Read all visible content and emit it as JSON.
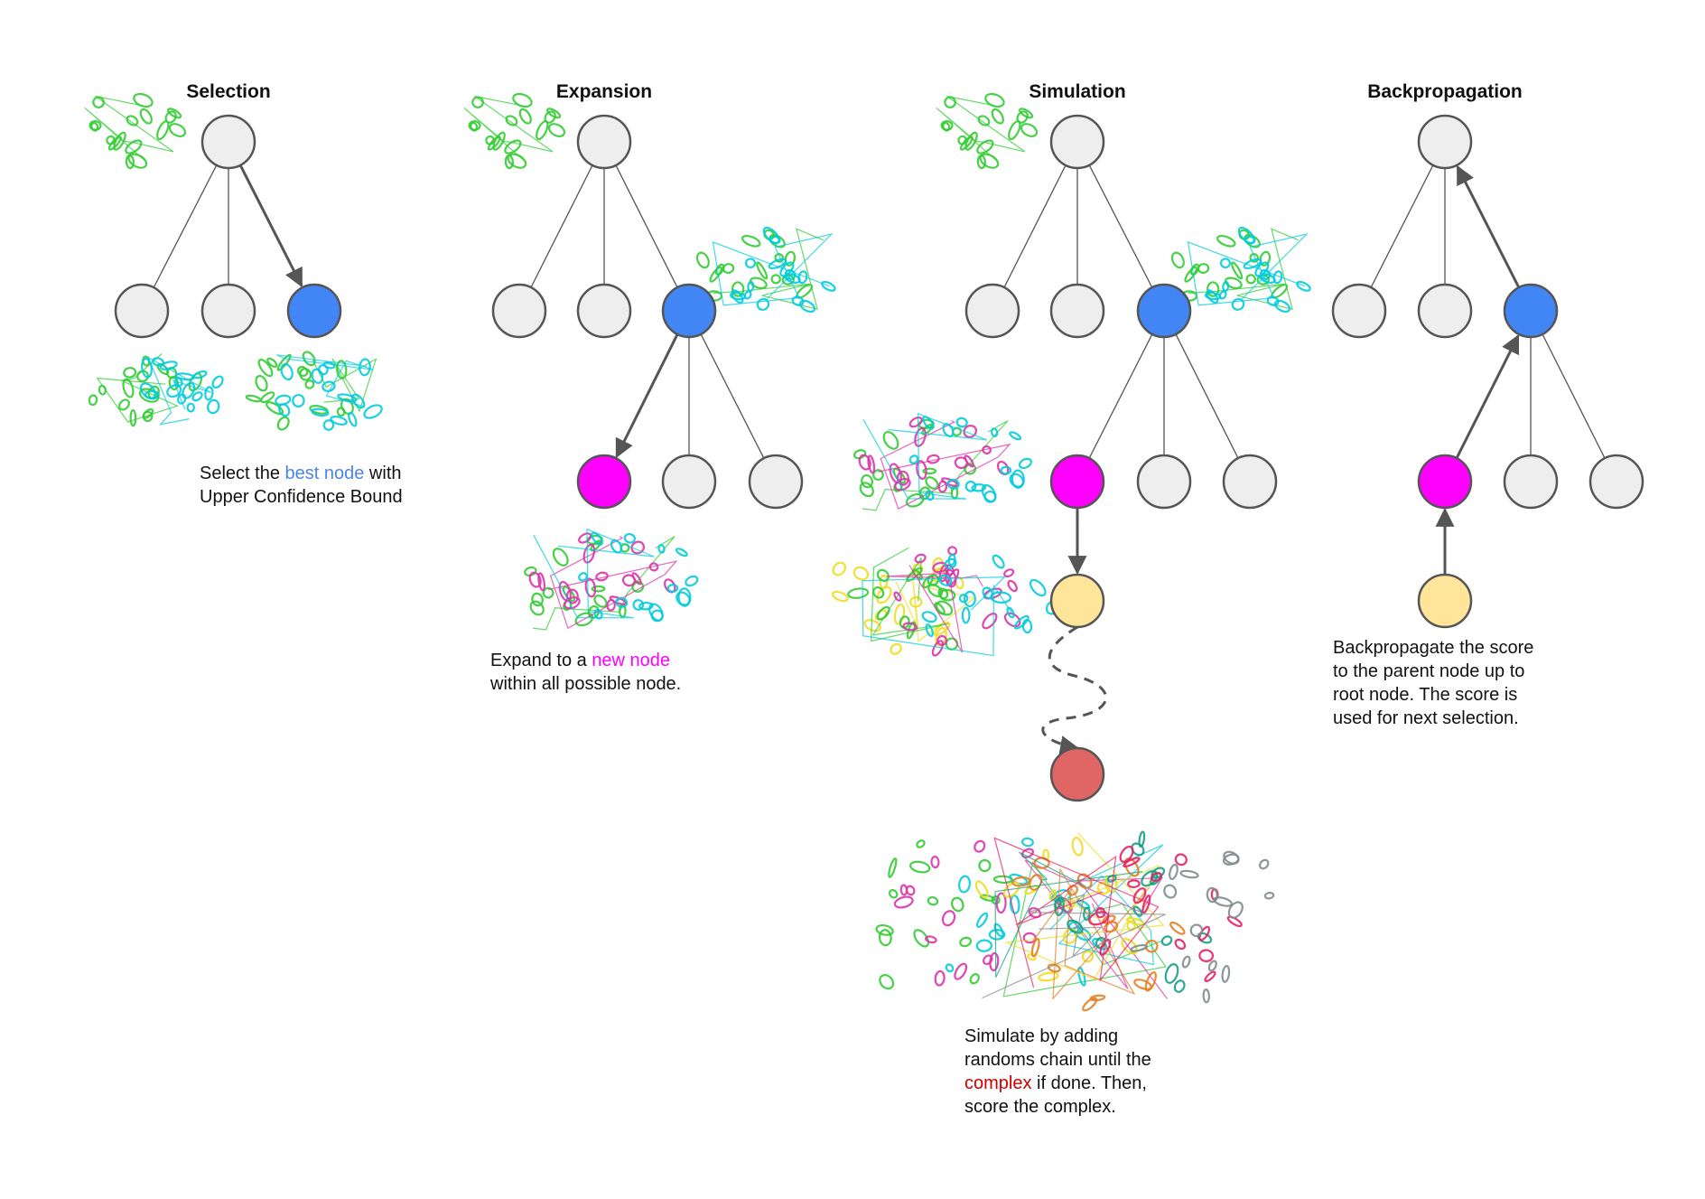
{
  "colors": {
    "node_default": "#eeeeee",
    "node_selected": "#4285f4",
    "node_new": "#ff00ff",
    "node_simulated": "#ffe599",
    "node_terminal": "#e06666",
    "node_stroke": "#555555",
    "edge": "#555555",
    "protein_green": "#33cc33",
    "protein_cyan": "#00ccdd",
    "protein_magenta": "#dd33aa",
    "protein_yellow": "#eedd22"
  },
  "panels": {
    "selection": {
      "title": "Selection",
      "caption": {
        "line1_pre": "Select the ",
        "line1_hl": "best node",
        "line1_post": " with",
        "line2": "Upper Confidence Bound"
      }
    },
    "expansion": {
      "title": "Expansion",
      "caption": {
        "line1_pre": "Expand to a ",
        "line1_hl": "new node",
        "line2": "within all possible node."
      }
    },
    "simulation": {
      "title": "Simulation",
      "caption": {
        "line1": "Simulate by adding",
        "line2": "randoms chain until the",
        "line3_hl": "complex",
        "line3_post": " if done. Then,",
        "line4": "score the complex."
      }
    },
    "backpropagation": {
      "title": "Backpropagation",
      "caption": {
        "line1": "Backpropagate the score",
        "line2": "to the parent node up to",
        "line3": "root node. The score is",
        "line4": "used for next selection."
      }
    }
  }
}
